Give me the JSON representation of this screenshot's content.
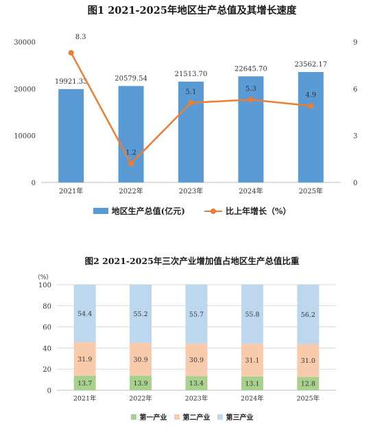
{
  "colors": {
    "gdp_bar": "#5B9BD5",
    "growth_line": "#ED7D31",
    "primary": "#A9D18E",
    "secondary": "#F8CBAD",
    "tertiary": "#BDD7EE",
    "grid": "#D9D9D9"
  },
  "chart_data": [
    {
      "type": "bar",
      "title": "图1   2021-2025年地区生产总值及其增长速度",
      "categories": [
        "2021年",
        "2022年",
        "2023年",
        "2024年",
        "2025年"
      ],
      "series": [
        {
          "name": "地区生产总值(亿元)",
          "type": "bar",
          "axis": "left",
          "values": [
            19921.33,
            20579.54,
            21513.7,
            22645.7,
            23562.17
          ],
          "labels": [
            "19921.33",
            "20579.54",
            "21513.70",
            "22645.70",
            "23562.17"
          ]
        },
        {
          "name": "比上年增长（%）",
          "type": "line",
          "axis": "right",
          "values": [
            8.3,
            1.2,
            5.1,
            5.3,
            4.9
          ],
          "labels": [
            "8.3",
            "1.2",
            "5.1",
            "5.3",
            "4.9"
          ]
        }
      ],
      "y_left": {
        "ylim": [
          0,
          30000
        ],
        "ticks": [
          "0",
          "10000",
          "20000",
          "30000"
        ]
      },
      "y_right": {
        "ylim": [
          0,
          9
        ],
        "ticks": [
          "0",
          "3",
          "6",
          "9"
        ]
      },
      "grid": false,
      "legend": "bottom"
    },
    {
      "type": "bar",
      "stacked": true,
      "title": "图2   2021-2025年三次产业增加值占地区生产总值比重",
      "ylabel": "（%）",
      "categories": [
        "2021年",
        "2022年",
        "2023年",
        "2024年",
        "2025年"
      ],
      "series": [
        {
          "name": "第一产业",
          "values": [
            13.7,
            13.9,
            13.4,
            13.1,
            12.8
          ],
          "labels": [
            "13.7",
            "13.9",
            "13.4",
            "13.1",
            "12.8"
          ]
        },
        {
          "name": "第二产业",
          "values": [
            31.9,
            30.9,
            30.9,
            31.1,
            31.0
          ],
          "labels": [
            "31.9",
            "30.9",
            "30.9",
            "31.1",
            "31.0"
          ]
        },
        {
          "name": "第三产业",
          "values": [
            54.4,
            55.2,
            55.7,
            55.8,
            56.2
          ],
          "labels": [
            "54.4",
            "55.2",
            "55.7",
            "55.8",
            "56.2"
          ]
        }
      ],
      "ylim": [
        0,
        100
      ],
      "ticks": [
        "0",
        "20",
        "40",
        "60",
        "80",
        "100"
      ],
      "grid": true,
      "legend": "bottom"
    }
  ]
}
